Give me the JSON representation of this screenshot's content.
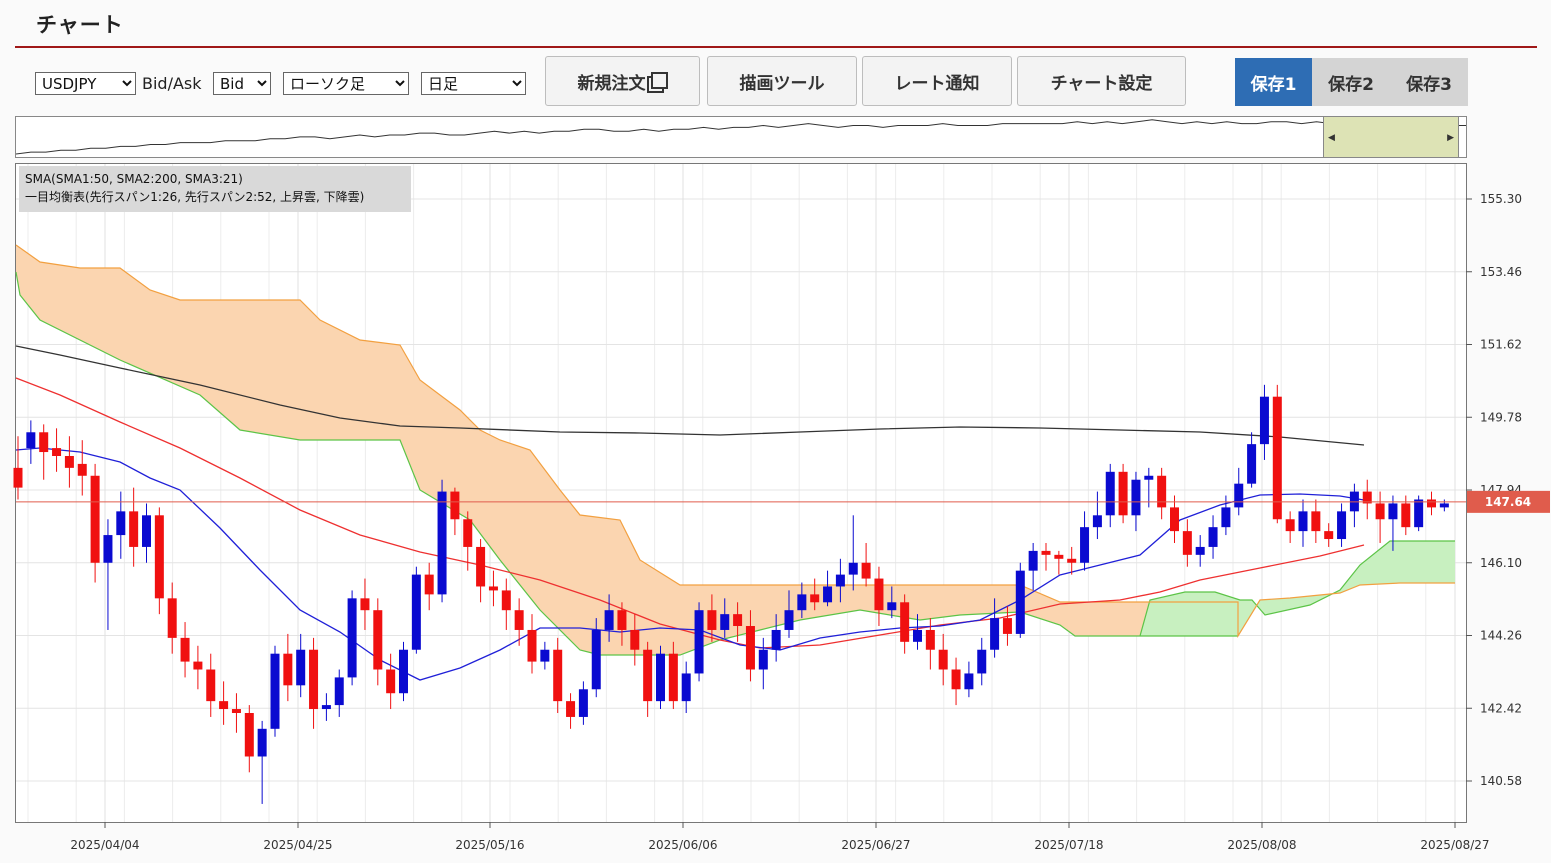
{
  "app": {
    "title": "チャート"
  },
  "toolbar": {
    "symbol": {
      "value": "USDJPY",
      "options": [
        "USDJPY"
      ]
    },
    "bidask_label": "Bid/Ask",
    "bidask": {
      "value": "Bid",
      "options": [
        "Bid"
      ]
    },
    "chart_type": {
      "value": "ローソク足",
      "options": [
        "ローソク足"
      ]
    },
    "period": {
      "value": "日足",
      "options": [
        "日足"
      ]
    },
    "new_order_label": "新規注文",
    "drawing_tools_label": "描画ツール",
    "rate_alert_label": "レート通知",
    "chart_settings_label": "チャート設定",
    "save_buttons": [
      {
        "label": "保存1",
        "active": true
      },
      {
        "label": "保存2",
        "active": false
      },
      {
        "label": "保存3",
        "active": false
      }
    ]
  },
  "legend": {
    "line1": "SMA(SMA1:50, SMA2:200, SMA3:21)",
    "line2": "一目均衡表(先行スパン1:26, 先行スパン2:52, 上昇雲, 下降雲)"
  },
  "colors": {
    "accent": "#a01818",
    "save_active": "#2e6db4",
    "save_inactive": "#d4d4d4",
    "bull": "#0a0ad0",
    "bear": "#f01010",
    "price_tag": "#e05c4c",
    "cloud_down": "#fbd5b0",
    "cloud_up": "#c8f0c0"
  },
  "chart_data": {
    "type": "candlestick",
    "y_ticks": [
      "155.30",
      "153.46",
      "151.62",
      "149.78",
      "147.94",
      "146.10",
      "144.26",
      "142.42",
      "140.58"
    ],
    "x_ticks": [
      "2025/04/04",
      "2025/04/25",
      "2025/05/16",
      "2025/06/06",
      "2025/06/27",
      "2025/07/18",
      "2025/08/08",
      "2025/08/27"
    ],
    "current_price": "147.64",
    "ylim": [
      139.5,
      156.3
    ],
    "candles": [
      [
        148.5,
        148.0,
        149.3,
        147.7
      ],
      [
        149.0,
        149.4,
        149.7,
        148.6
      ],
      [
        149.4,
        148.9,
        149.6,
        148.2
      ],
      [
        149.0,
        148.8,
        149.5,
        148.4
      ],
      [
        148.8,
        148.5,
        149.3,
        148.0
      ],
      [
        148.6,
        148.3,
        149.2,
        147.8
      ],
      [
        148.3,
        146.1,
        148.6,
        145.6
      ],
      [
        146.1,
        146.8,
        147.2,
        144.4
      ],
      [
        146.8,
        147.4,
        147.9,
        146.2
      ],
      [
        147.4,
        146.5,
        148.0,
        146.0
      ],
      [
        146.5,
        147.3,
        147.6,
        146.1
      ],
      [
        147.3,
        145.2,
        147.5,
        144.8
      ],
      [
        145.2,
        144.2,
        145.6,
        143.8
      ],
      [
        144.2,
        143.6,
        144.6,
        143.2
      ],
      [
        143.6,
        143.4,
        144.0,
        142.9
      ],
      [
        143.4,
        142.6,
        143.8,
        142.2
      ],
      [
        142.6,
        142.4,
        143.1,
        142.0
      ],
      [
        142.4,
        142.3,
        142.8,
        141.8
      ],
      [
        142.3,
        141.2,
        142.5,
        140.8
      ],
      [
        141.2,
        141.9,
        142.1,
        140.0
      ],
      [
        141.9,
        143.8,
        144.0,
        141.7
      ],
      [
        143.8,
        143.0,
        144.3,
        142.6
      ],
      [
        143.0,
        143.9,
        144.3,
        142.7
      ],
      [
        143.9,
        142.4,
        144.2,
        141.9
      ],
      [
        142.4,
        142.5,
        142.8,
        142.1
      ],
      [
        142.5,
        143.2,
        143.4,
        142.2
      ],
      [
        143.2,
        145.2,
        145.4,
        143.0
      ],
      [
        145.2,
        144.9,
        145.7,
        144.4
      ],
      [
        144.9,
        143.4,
        145.2,
        143.0
      ],
      [
        143.4,
        142.8,
        143.8,
        142.4
      ],
      [
        142.8,
        143.9,
        144.1,
        142.6
      ],
      [
        143.9,
        145.8,
        146.0,
        143.8
      ],
      [
        145.8,
        145.3,
        146.1,
        144.9
      ],
      [
        145.3,
        147.9,
        148.2,
        145.1
      ],
      [
        147.9,
        147.2,
        148.0,
        146.8
      ],
      [
        147.2,
        146.5,
        147.4,
        145.9
      ],
      [
        146.5,
        145.5,
        146.7,
        145.1
      ],
      [
        145.5,
        145.4,
        145.9,
        145.0
      ],
      [
        145.4,
        144.9,
        145.7,
        144.4
      ],
      [
        144.9,
        144.4,
        145.2,
        144.0
      ],
      [
        144.4,
        143.6,
        144.8,
        143.3
      ],
      [
        143.6,
        143.9,
        144.1,
        143.4
      ],
      [
        143.9,
        142.6,
        144.2,
        142.3
      ],
      [
        142.6,
        142.2,
        142.8,
        141.9
      ],
      [
        142.2,
        142.9,
        143.1,
        142.0
      ],
      [
        142.9,
        144.4,
        144.7,
        142.7
      ],
      [
        144.4,
        144.9,
        145.3,
        144.1
      ],
      [
        144.9,
        144.4,
        145.1,
        144.0
      ],
      [
        144.4,
        143.9,
        144.8,
        143.5
      ],
      [
        143.9,
        142.6,
        144.1,
        142.2
      ],
      [
        142.6,
        143.8,
        144.0,
        142.4
      ],
      [
        143.8,
        142.6,
        144.1,
        142.4
      ],
      [
        142.6,
        143.3,
        143.6,
        142.3
      ],
      [
        143.3,
        144.9,
        145.1,
        143.1
      ],
      [
        144.9,
        144.4,
        145.3,
        144.1
      ],
      [
        144.4,
        144.8,
        145.2,
        144.2
      ],
      [
        144.8,
        144.5,
        145.1,
        144.1
      ],
      [
        144.5,
        143.4,
        144.9,
        143.1
      ],
      [
        143.4,
        143.9,
        144.2,
        142.9
      ],
      [
        143.9,
        144.4,
        144.8,
        143.6
      ],
      [
        144.4,
        144.9,
        145.4,
        144.2
      ],
      [
        144.9,
        145.3,
        145.6,
        144.7
      ],
      [
        145.3,
        145.1,
        145.7,
        144.9
      ],
      [
        145.1,
        145.5,
        145.9,
        145.0
      ],
      [
        145.5,
        145.8,
        146.2,
        145.1
      ],
      [
        145.8,
        146.1,
        147.3,
        145.4
      ],
      [
        146.1,
        145.7,
        146.6,
        145.5
      ],
      [
        145.7,
        144.9,
        146.0,
        144.5
      ],
      [
        144.9,
        145.1,
        145.5,
        144.7
      ],
      [
        145.1,
        144.1,
        145.3,
        143.8
      ],
      [
        144.1,
        144.4,
        144.8,
        143.9
      ],
      [
        144.4,
        143.9,
        144.7,
        143.4
      ],
      [
        143.9,
        143.4,
        144.3,
        143.0
      ],
      [
        143.4,
        142.9,
        143.7,
        142.5
      ],
      [
        142.9,
        143.3,
        143.6,
        142.7
      ],
      [
        143.3,
        143.9,
        144.2,
        143.0
      ],
      [
        143.9,
        144.7,
        145.2,
        143.7
      ],
      [
        144.7,
        144.3,
        145.0,
        144.0
      ],
      [
        144.3,
        145.9,
        146.1,
        144.2
      ],
      [
        145.9,
        146.4,
        146.6,
        145.4
      ],
      [
        146.4,
        146.3,
        146.6,
        145.9
      ],
      [
        146.3,
        146.2,
        146.4,
        145.8
      ],
      [
        146.2,
        146.1,
        146.5,
        145.8
      ],
      [
        146.1,
        147.0,
        147.4,
        145.9
      ],
      [
        147.0,
        147.3,
        147.9,
        146.7
      ],
      [
        147.3,
        148.4,
        148.6,
        147.0
      ],
      [
        148.4,
        147.3,
        148.6,
        147.1
      ],
      [
        147.3,
        148.2,
        148.4,
        146.9
      ],
      [
        148.2,
        148.3,
        148.5,
        147.5
      ],
      [
        148.3,
        147.5,
        148.5,
        147.2
      ],
      [
        147.5,
        146.9,
        147.8,
        146.6
      ],
      [
        146.9,
        146.3,
        147.2,
        146.0
      ],
      [
        146.3,
        146.5,
        146.8,
        146.0
      ],
      [
        146.5,
        147.0,
        147.3,
        146.2
      ],
      [
        147.0,
        147.5,
        147.8,
        146.8
      ],
      [
        147.5,
        148.1,
        148.5,
        147.3
      ],
      [
        148.1,
        149.1,
        149.4,
        148.0
      ],
      [
        149.1,
        150.3,
        150.6,
        148.7
      ],
      [
        150.3,
        147.2,
        150.6,
        147.1
      ],
      [
        147.2,
        146.9,
        147.4,
        146.6
      ],
      [
        146.9,
        147.4,
        147.7,
        146.5
      ],
      [
        147.4,
        146.9,
        147.7,
        146.6
      ],
      [
        146.9,
        146.7,
        147.1,
        146.5
      ],
      [
        146.7,
        147.4,
        147.6,
        146.5
      ],
      [
        147.4,
        147.9,
        148.1,
        147.0
      ],
      [
        147.9,
        147.6,
        148.2,
        147.2
      ],
      [
        147.6,
        147.2,
        147.9,
        146.6
      ],
      [
        147.2,
        147.6,
        147.8,
        146.4
      ],
      [
        147.6,
        147.0,
        147.8,
        146.8
      ],
      [
        147.0,
        147.7,
        147.8,
        146.9
      ],
      [
        147.7,
        147.5,
        147.9,
        147.3
      ],
      [
        147.5,
        147.6,
        147.7,
        147.4
      ]
    ]
  }
}
